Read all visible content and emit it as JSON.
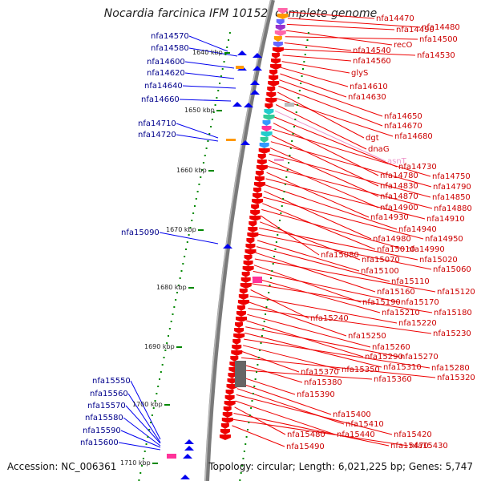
{
  "title": "Nocardia farcinica IFM 10152, complete genome",
  "footer": {
    "accession": "Accession: NC_006361",
    "topology": "Topology: circular; Length: 6,021,225 bp; Genes: 5,747"
  },
  "colors": {
    "forward_gene": "#0000ee",
    "reverse_gene": "#ee0000",
    "rna_gene": "#ee99cc",
    "tick": "#008800",
    "backbone": "#777777"
  },
  "scale": {
    "unit": "kbp",
    "ticks": [
      "1640 kbp",
      "1650 kbp",
      "1660 kbp",
      "1670 kbp",
      "1680 kbp",
      "1690 kbp",
      "1700 kbp",
      "1710 kbp"
    ]
  },
  "left_labels": [
    "nfa14570",
    "nfa14580",
    "nfa14600",
    "nfa14620",
    "nfa14640",
    "nfa14660",
    "nfa14710",
    "nfa14720",
    "nfa15090",
    "nfa15550",
    "nfa15560",
    "nfa15570",
    "nfa15580",
    "nfa15590",
    "nfa15600"
  ],
  "right_labels": [
    "nfa14470",
    "nfa14480",
    "nfa14490",
    "recO",
    "nfa14500",
    "nfa14540",
    "nfa14530",
    "nfa14560",
    "glyS",
    "nfa14610",
    "nfa14630",
    "nfa14650",
    "nfa14670",
    "dgt",
    "nfa14680",
    "dnaG",
    "asnT",
    "nfa14730",
    "nfa14780",
    "nfa14750",
    "nfa14830",
    "nfa14790",
    "nfa14870",
    "nfa14850",
    "nfa14900",
    "nfa14880",
    "nfa14930",
    "nfa14910",
    "nfa14940",
    "nfa14980",
    "nfa14950",
    "nfa15010",
    "nfa14990",
    "nfa15080",
    "nfa15070",
    "nfa15020",
    "nfa15060",
    "nfa15100",
    "nfa15110",
    "nfa15160",
    "nfa15120",
    "nfa15190",
    "nfa15170",
    "nfa15210",
    "nfa15180",
    "nfa15240",
    "nfa15220",
    "nfa15250",
    "nfa15230",
    "nfa15260",
    "nfa15290",
    "nfa15270",
    "nfa15310",
    "nfa15280",
    "nfa15350",
    "nfa15370",
    "nfa15320",
    "nfa15380",
    "nfa15360",
    "nfa15390",
    "nfa15400",
    "nfa15410",
    "nfa15420",
    "nfa15440",
    "nfa15480",
    "nfa15470",
    "nfa15430",
    "nfa15490"
  ]
}
